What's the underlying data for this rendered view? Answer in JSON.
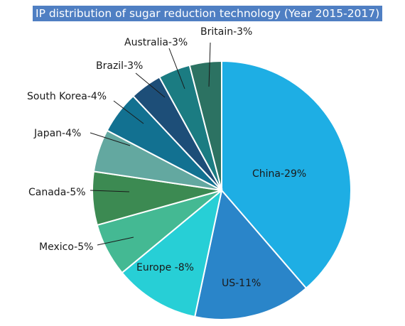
{
  "chart_data": {
    "type": "pie",
    "title": "IP distribution of sugar reduction technology (Year 2015-2017)",
    "slices": [
      {
        "label": "China-29%",
        "value": 29,
        "color": "#1eaee4"
      },
      {
        "label": "US-11%",
        "value": 11,
        "color": "#2a85c9"
      },
      {
        "label": "Europe -8%",
        "value": 8,
        "color": "#27cfd6"
      },
      {
        "label": "Mexico-5%",
        "value": 5,
        "color": "#44b993"
      },
      {
        "label": "Canada-5%",
        "value": 5,
        "color": "#3c8a52"
      },
      {
        "label": "Japan-4%",
        "value": 4,
        "color": "#63a8a0"
      },
      {
        "label": "South Korea-4%",
        "value": 4,
        "color": "#127191"
      },
      {
        "label": "Brazil-3%",
        "value": 3,
        "color": "#1d4e78"
      },
      {
        "label": "Australia-3%",
        "value": 3,
        "color": "#1b7c82"
      },
      {
        "label": "Britain-3%",
        "value": 3,
        "color": "#2c7262"
      }
    ],
    "start_angle": "12 o'clock",
    "direction": "clockwise",
    "legend": "none"
  }
}
